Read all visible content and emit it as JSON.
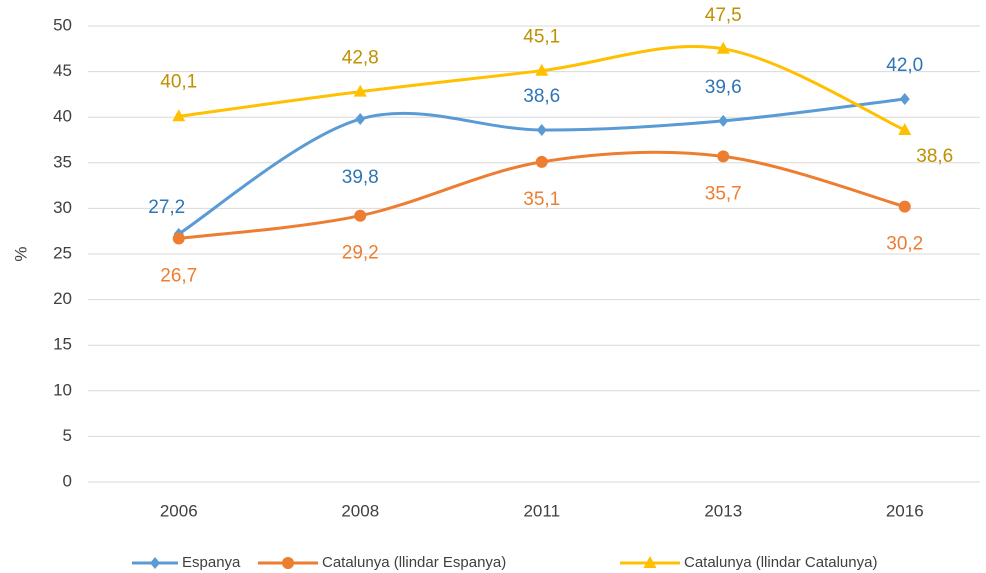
{
  "chart_data": {
    "type": "line",
    "y_label": "%",
    "categories": [
      "2006",
      "2008",
      "2011",
      "2013",
      "2016"
    ],
    "ylim": [
      0,
      50
    ],
    "yticks": [
      0,
      5,
      10,
      15,
      20,
      25,
      30,
      35,
      40,
      45,
      50
    ],
    "grid": true,
    "smooth": true,
    "legend": "bottom",
    "series": [
      {
        "name": "Espanya",
        "color": "#5b9bd5",
        "label_color": "#2e75b6",
        "marker": "diamond",
        "values": [
          27.2,
          39.8,
          38.6,
          39.6,
          42.0
        ],
        "value_labels": [
          "27,2",
          "39,8",
          "38,6",
          "39,6",
          "42,0"
        ]
      },
      {
        "name": "Catalunya (llindar Espanya)",
        "color": "#ed7d31",
        "label_color": "#ed7d31",
        "marker": "circle",
        "values": [
          26.7,
          29.2,
          35.1,
          35.7,
          30.2
        ],
        "value_labels": [
          "26,7",
          "29,2",
          "35,1",
          "35,7",
          "30,2"
        ]
      },
      {
        "name": "Catalunya (llindar Catalunya)",
        "color": "#ffc000",
        "label_color": "#bf9000",
        "marker": "triangle",
        "values": [
          40.1,
          42.8,
          45.1,
          47.5,
          38.6
        ],
        "value_labels": [
          "40,1",
          "42,8",
          "45,1",
          "47,5",
          "38,6"
        ]
      }
    ]
  }
}
